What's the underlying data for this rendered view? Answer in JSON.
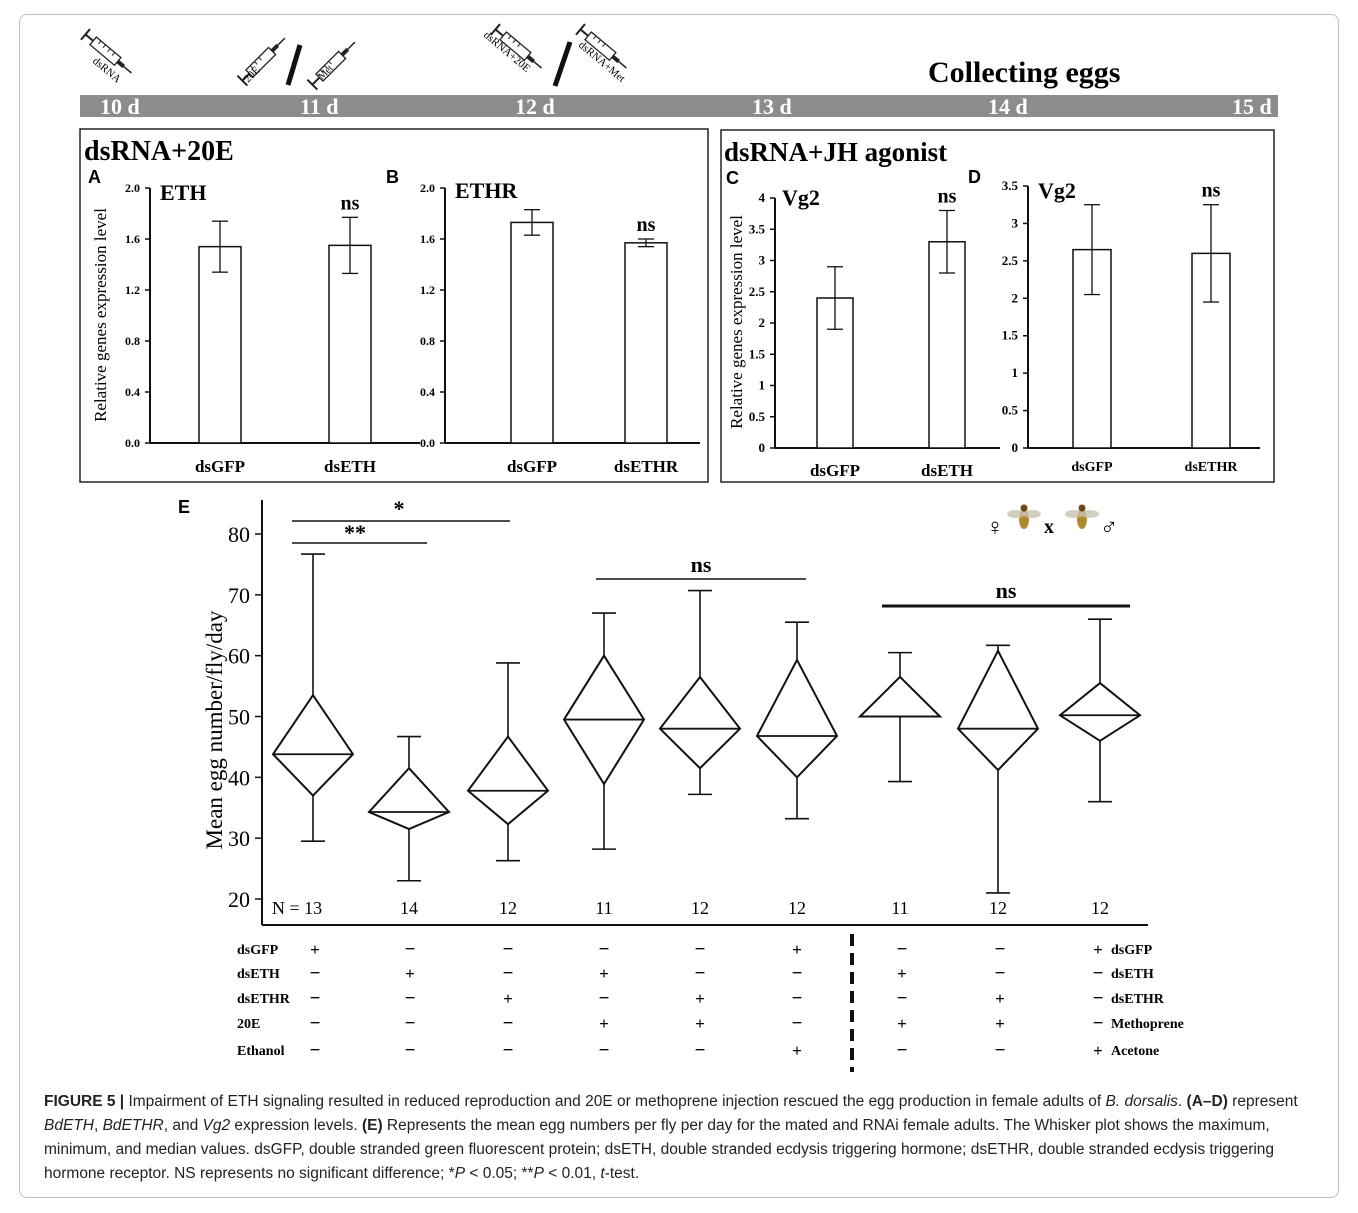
{
  "timeline": {
    "days": [
      "10 d",
      "11 d",
      "12 d",
      "13 d",
      "14 d",
      "15 d"
    ],
    "collecting_label": "Collecting eggs",
    "syringes": [
      "dsRNA",
      "20E",
      "Met",
      "dsRNA+20E",
      "dsRNA+Met"
    ]
  },
  "group_titles": [
    "dsRNA+20E",
    "dsRNA+JH agonist"
  ],
  "y_label_shared": "Relative genes expression level",
  "panels_top": [
    {
      "letter": "A",
      "gene": "ETH",
      "ylim": [
        0,
        2.0
      ],
      "ticks": [
        "0.0",
        "0.4",
        "0.8",
        "1.2",
        "1.6",
        "2.0"
      ],
      "ticks_v": [
        0,
        0.4,
        0.8,
        1.2,
        1.6,
        2.0
      ],
      "categories": [
        "dsGFP",
        "dsETH"
      ]
    },
    {
      "letter": "B",
      "gene": "ETHR",
      "ylim": [
        0,
        2.0
      ],
      "ticks": [
        "0.0",
        "0.4",
        "0.8",
        "1.2",
        "1.6",
        "2.0"
      ],
      "ticks_v": [
        0,
        0.4,
        0.8,
        1.2,
        1.6,
        2.0
      ],
      "categories": [
        "dsGFP",
        "dsETHR"
      ]
    },
    {
      "letter": "C",
      "gene": "Vg2",
      "ylim": [
        0,
        4
      ],
      "ticks": [
        "0",
        "0.5",
        "1",
        "1.5",
        "2",
        "2.5",
        "3",
        "3.5",
        "4"
      ],
      "ticks_v": [
        0,
        0.5,
        1,
        1.5,
        2,
        2.5,
        3,
        3.5,
        4
      ],
      "categories": [
        "dsGFP",
        "dsETH"
      ]
    },
    {
      "letter": "D",
      "gene": "Vg2",
      "ylim": [
        0,
        3.5
      ],
      "ticks": [
        "0",
        "0.5",
        "1",
        "1.5",
        "2",
        "2.5",
        "3",
        "3.5"
      ],
      "ticks_v": [
        0,
        0.5,
        1,
        1.5,
        2,
        2.5,
        3,
        3.5
      ],
      "categories": [
        "dsGFP",
        "dsETHR"
      ]
    }
  ],
  "panel_e": {
    "letter": "E",
    "ylabel": "Mean egg number/fly/day",
    "ticks": [
      "20",
      "30",
      "40",
      "50",
      "60",
      "70",
      "80"
    ],
    "ticks_v": [
      20,
      30,
      40,
      50,
      60,
      70,
      80
    ],
    "ylim": [
      20,
      85
    ],
    "n_labels": [
      "N = 13",
      "14",
      "12",
      "11",
      "12",
      "12",
      "11",
      "12",
      "12"
    ],
    "sig": [
      "*",
      "**",
      "ns",
      "ns"
    ],
    "fly_cross": {
      "female": "♀",
      "cross": "x",
      "male": "♂"
    },
    "row_labels_left": [
      "dsGFP",
      "dsETH",
      "dsETHR",
      "20E",
      "Ethanol"
    ],
    "row_labels_right": [
      "dsGFP",
      "dsETH",
      "dsETHR",
      "Methoprene",
      "Acetone"
    ],
    "matrix": [
      [
        "+",
        "-",
        "-",
        "-",
        "-",
        "+",
        "-",
        "-",
        "+"
      ],
      [
        "-",
        "+",
        "-",
        "+",
        "-",
        "-",
        "+",
        "-",
        "-"
      ],
      [
        "-",
        "-",
        "+",
        "-",
        "+",
        "-",
        "-",
        "+",
        "-"
      ],
      [
        "-",
        "-",
        "-",
        "+",
        "+",
        "-",
        "+",
        "+",
        "-"
      ],
      [
        "-",
        "-",
        "-",
        "-",
        "-",
        "+",
        "-",
        "-",
        "+"
      ]
    ]
  },
  "chart_data": [
    {
      "type": "bar",
      "panel": "A",
      "title": "ETH",
      "categories": [
        "dsGFP",
        "dsETH"
      ],
      "values": [
        1.54,
        1.55
      ],
      "errors": [
        0.2,
        0.22
      ],
      "significance": [
        "",
        "ns"
      ],
      "ylabel": "Relative genes expression level",
      "ylim": [
        0,
        2.0
      ]
    },
    {
      "type": "bar",
      "panel": "B",
      "title": "ETHR",
      "categories": [
        "dsGFP",
        "dsETHR"
      ],
      "values": [
        1.73,
        1.57
      ],
      "errors": [
        0.1,
        0.03
      ],
      "significance": [
        "",
        "ns"
      ],
      "ylim": [
        0,
        2.0
      ]
    },
    {
      "type": "bar",
      "panel": "C",
      "title": "Vg2",
      "categories": [
        "dsGFP",
        "dsETH"
      ],
      "values": [
        2.4,
        3.3
      ],
      "errors": [
        0.5,
        0.5
      ],
      "significance": [
        "",
        "ns"
      ],
      "ylabel": "Relative genes expression level",
      "ylim": [
        0,
        4
      ]
    },
    {
      "type": "bar",
      "panel": "D",
      "title": "Vg2",
      "categories": [
        "dsGFP",
        "dsETHR"
      ],
      "values": [
        2.65,
        2.6
      ],
      "errors": [
        0.6,
        0.65
      ],
      "significance": [
        "",
        "ns"
      ],
      "ylim": [
        0,
        3.5
      ]
    },
    {
      "type": "box",
      "panel": "E",
      "ylabel": "Mean egg number/fly/day",
      "ylim": [
        20,
        85
      ],
      "groups": [
        {
          "n": 13,
          "min": 29.5,
          "q1": 37,
          "median": 43.8,
          "q3": 53.5,
          "max": 76.7
        },
        {
          "n": 14,
          "min": 23,
          "q1": 31.5,
          "median": 34.3,
          "q3": 41.5,
          "max": 46.7
        },
        {
          "n": 12,
          "min": 26.3,
          "q1": 32.3,
          "median": 37.8,
          "q3": 46.7,
          "max": 58.8
        },
        {
          "n": 11,
          "min": 28.2,
          "q1": 38.9,
          "median": 49.5,
          "q3": 60,
          "max": 67
        },
        {
          "n": 12,
          "min": 37.2,
          "q1": 41.5,
          "median": 48,
          "q3": 56.5,
          "max": 70.7
        },
        {
          "n": 12,
          "min": 33.2,
          "q1": 40,
          "median": 46.8,
          "q3": 59.3,
          "max": 65.5
        },
        {
          "n": 11,
          "min": 39.3,
          "q1": 50,
          "median": 50,
          "q3": 56.5,
          "max": 60.5
        },
        {
          "n": 12,
          "min": 21,
          "q1": 41.2,
          "median": 48,
          "q3": 60.8,
          "max": 61.7
        },
        {
          "n": 12,
          "min": 36,
          "q1": 46,
          "median": 50.2,
          "q3": 55.5,
          "max": 66
        }
      ],
      "significance": [
        {
          "groups": [
            1,
            3
          ],
          "label": "*"
        },
        {
          "groups": [
            1,
            2
          ],
          "label": "**"
        },
        {
          "groups": [
            4,
            6
          ],
          "label": "ns"
        },
        {
          "groups": [
            7,
            9
          ],
          "label": "ns"
        }
      ]
    }
  ],
  "caption": {
    "fig_label": "FIGURE 5 |",
    "sentence1": " Impairment of ETH signaling resulted in reduced reproduction and 20E or methoprene injection rescued the egg production in female adults of ",
    "species": "B. dorsalis",
    "s1_end": ". ",
    "ad_label": "(A–D)",
    "represent": " represent ",
    "g1": "BdETH",
    "c1": ", ",
    "g2": "BdETHR",
    "and_": ", and ",
    "g3": "Vg2",
    "expr": " expression levels. ",
    "e_label": "(E)",
    "e_text": " Represents the mean egg numbers per fly per day for the mated and RNAi female adults. The Whisker plot shows the maximum, minimum, and median values. dsGFP, double stranded green fluorescent protein; dsETH, double stranded ecdysis triggering hormone; dsETHR, double stranded ecdysis triggering hormone receptor. NS represents no significant difference; *",
    "p1": "P",
    "p1_text": " < 0.05; **",
    "p2": "P",
    "p2_text": " < 0.01, ",
    "t": "t",
    "t_text": "-test."
  }
}
